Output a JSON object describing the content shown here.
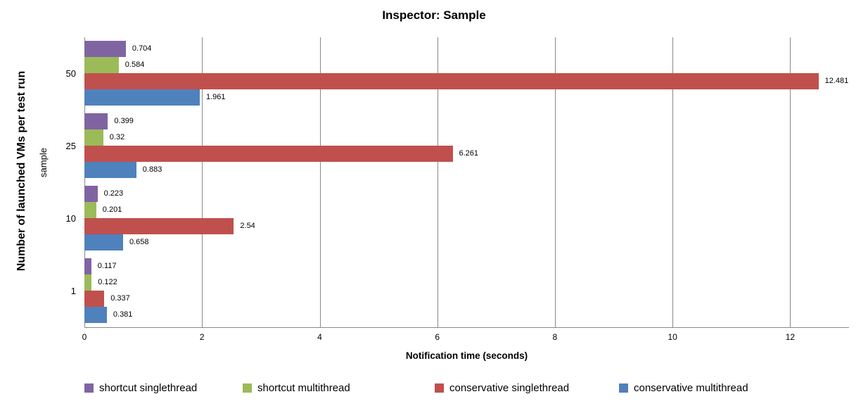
{
  "title": "Inspector: Sample",
  "y_axis": {
    "title": "Number of launched VMs per test run",
    "field_label": "sample"
  },
  "x_axis": {
    "title": "Notification time (seconds)",
    "tick_labels": [
      "0",
      "2",
      "4",
      "6",
      "8",
      "10",
      "12"
    ]
  },
  "colors": {
    "gridline": "#898989",
    "axis_line": "#898989",
    "shortcut_singlethread": "#8064A2",
    "shortcut_multithread": "#9BBB59",
    "conservative_singlethread": "#C0504D",
    "conservative_multithread": "#4F81BD"
  },
  "chart_data": {
    "type": "bar",
    "orientation": "horizontal",
    "title": "Inspector: Sample",
    "xlabel": "Notification time (seconds)",
    "ylabel": "Number of launched VMs per test run",
    "field_label": "sample",
    "categories": [
      "50",
      "25",
      "10",
      "1"
    ],
    "series": [
      {
        "name": "shortcut singlethread",
        "color": "#8064A2",
        "values": [
          0.704,
          0.399,
          0.223,
          0.117
        ],
        "labels": [
          "0.704",
          "0.399",
          "0.223",
          "0.117"
        ]
      },
      {
        "name": "shortcut multithread",
        "color": "#9BBB59",
        "values": [
          0.584,
          0.32,
          0.201,
          0.122
        ],
        "labels": [
          "0.584",
          "0.32",
          "0.201",
          "0.122"
        ]
      },
      {
        "name": "conservative singlethread",
        "color": "#C0504D",
        "values": [
          12.481,
          6.261,
          2.54,
          0.337
        ],
        "labels": [
          "12.481",
          "6.261",
          "2.54",
          "0.337"
        ]
      },
      {
        "name": "conservative multithread",
        "color": "#4F81BD",
        "values": [
          1.961,
          0.883,
          0.658,
          0.381
        ],
        "labels": [
          "1.961",
          "0.883",
          "0.658",
          "0.381"
        ]
      }
    ],
    "xlim": [
      0,
      13
    ],
    "x_ticks": [
      0,
      2,
      4,
      6,
      8,
      10,
      12
    ],
    "grid": true,
    "value_labels_shown": true,
    "legend_position": "bottom"
  }
}
